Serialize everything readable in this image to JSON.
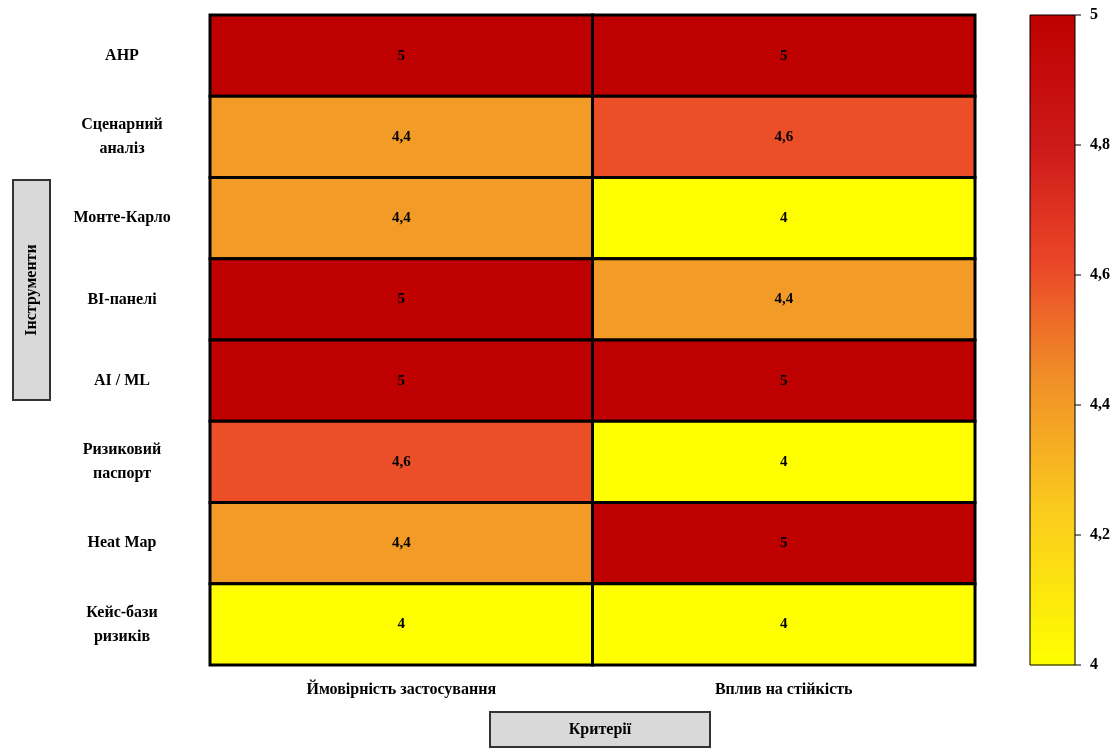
{
  "chart_data": {
    "type": "heatmap",
    "xlabel": "Критерії",
    "ylabel": "Інструменти",
    "categories": [
      "Ймовірність застосування",
      "Вплив на стійкість"
    ],
    "y_categories": [
      "AHP",
      "Сценарний аналіз",
      "Монте-Карло",
      "BI-панелі",
      "AI / ML",
      "Ризиковий паспорт",
      "Heat Map",
      "Кейс-бази ризиків"
    ],
    "cells": [
      [
        5,
        5
      ],
      [
        4.4,
        4.6
      ],
      [
        4.4,
        4
      ],
      [
        5,
        4.4
      ],
      [
        5,
        5
      ],
      [
        4.6,
        4
      ],
      [
        4.4,
        5
      ],
      [
        4,
        4
      ]
    ],
    "cell_labels": [
      [
        "5",
        "5"
      ],
      [
        "4,4",
        "4,6"
      ],
      [
        "4,4",
        "4"
      ],
      [
        "5",
        "4,4"
      ],
      [
        "5",
        "5"
      ],
      [
        "4,6",
        "4"
      ],
      [
        "4,4",
        "5"
      ],
      [
        "4",
        "4"
      ]
    ],
    "clim": [
      4,
      5
    ],
    "cticks": [
      {
        "value": 4,
        "label": "4"
      },
      {
        "value": 4.2,
        "label": "4,2"
      },
      {
        "value": 4.4,
        "label": "4,4"
      },
      {
        "value": 4.6,
        "label": "4,6"
      },
      {
        "value": 4.8,
        "label": "4,8"
      },
      {
        "value": 5,
        "label": "5"
      }
    ]
  }
}
